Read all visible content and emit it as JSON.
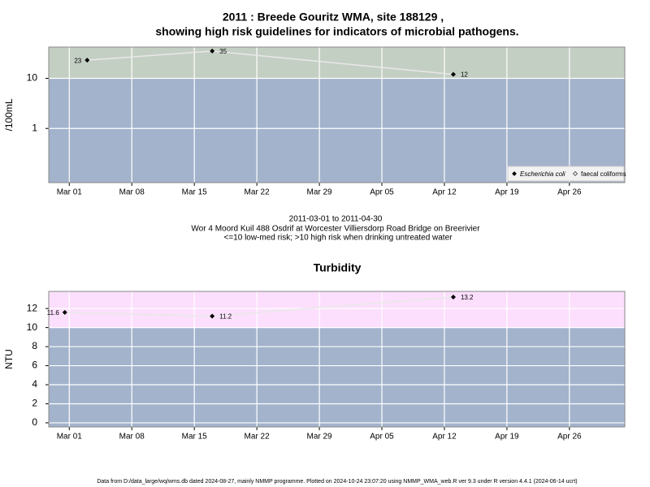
{
  "title": [
    "2011 : Breede Gouritz WMA, site 188129 ,",
    "showing high risk guidelines for indicators of microbial pathogens."
  ],
  "subtitle": [
    "2011-03-01 to 2011-04-30",
    "Wor 4 Moord Kuil 488 Osdrif at Worcester Villiersdorp Road Bridge on Breerivier",
    "<=10 low-med risk; >10 high risk when drinking untreated water"
  ],
  "footer": "Data from D:/data_large/wq/wms.db dated 2024-08-27, mainly NMMP programme. Plotted on 2024-10-24 23:07:20 using NMMP_WMA_web.R ver 9.3 under R version 4.4.1 (2024-06-14 ucrt)",
  "chart_data": [
    {
      "type": "line",
      "ylabel": "/100mL",
      "log_scale": true,
      "x": [
        62,
        76,
        103
      ],
      "series": [
        {
          "name": "Escherichia coli",
          "color": "#000000",
          "line_color": "#e8e8e8",
          "values": [
            23,
            35,
            12
          ]
        },
        {
          "name": "faecal coliforms",
          "color": "#000000",
          "line_color": "#e8e8e8",
          "values": [
            null,
            null,
            null
          ]
        }
      ],
      "xlim": [
        57.7,
        122.2
      ],
      "xticks": [
        {
          "value": 60,
          "label": "Mar 01"
        },
        {
          "value": 67,
          "label": "Mar 08"
        },
        {
          "value": 74,
          "label": "Mar 15"
        },
        {
          "value": 81,
          "label": "Mar 22"
        },
        {
          "value": 88,
          "label": "Mar 29"
        },
        {
          "value": 95,
          "label": "Apr 05"
        },
        {
          "value": 102,
          "label": "Apr 12"
        },
        {
          "value": 109,
          "label": "Apr 19"
        },
        {
          "value": 116,
          "label": "Apr 26"
        }
      ],
      "ylim": [
        0.083,
        42
      ],
      "yticks": [
        1,
        10
      ],
      "threshold": 10,
      "high_color": "#c4cfc3",
      "low_color": "#a3b3cc",
      "grid": true,
      "legend": "bottom-right"
    },
    {
      "type": "line",
      "title": "Turbidity",
      "ylabel": "NTU",
      "log_scale": false,
      "x": [
        59.5,
        76,
        103
      ],
      "series": [
        {
          "name": "Turbidity",
          "color": "#000000",
          "line_color": "#e8e8e8",
          "values": [
            11.6,
            11.2,
            13.2
          ]
        }
      ],
      "xlim": [
        57.7,
        122.2
      ],
      "xticks": [
        {
          "value": 60,
          "label": "Mar 01"
        },
        {
          "value": 67,
          "label": "Mar 08"
        },
        {
          "value": 74,
          "label": "Mar 15"
        },
        {
          "value": 81,
          "label": "Mar 22"
        },
        {
          "value": 88,
          "label": "Mar 29"
        },
        {
          "value": 95,
          "label": "Apr 05"
        },
        {
          "value": 102,
          "label": "Apr 12"
        },
        {
          "value": 109,
          "label": "Apr 19"
        },
        {
          "value": 116,
          "label": "Apr 26"
        }
      ],
      "ylim": [
        -0.43,
        13.8
      ],
      "yticks": [
        0,
        2,
        4,
        6,
        8,
        10,
        12
      ],
      "threshold": 10,
      "high_color": "#fcdffc",
      "low_color": "#a3b3cc",
      "grid": true
    }
  ]
}
